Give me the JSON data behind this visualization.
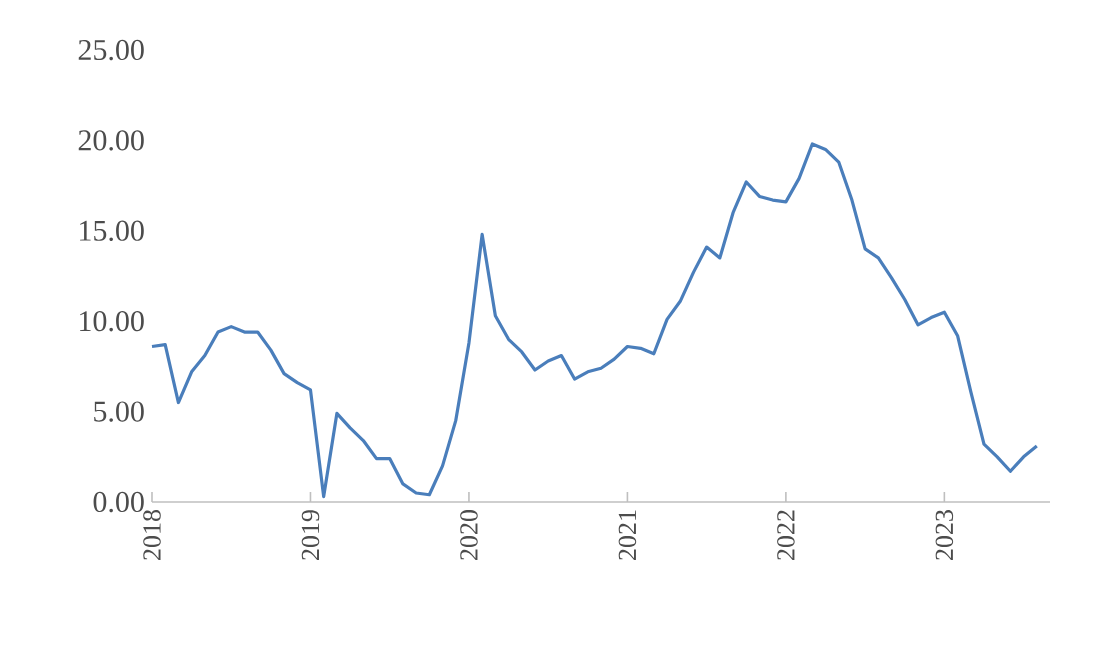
{
  "chart_data": {
    "type": "line",
    "x": [
      "2018-01",
      "2018-02",
      "2018-03",
      "2018-04",
      "2018-05",
      "2018-06",
      "2018-07",
      "2018-08",
      "2018-09",
      "2018-10",
      "2018-11",
      "2018-12",
      "2019-01",
      "2019-02",
      "2019-03",
      "2019-04",
      "2019-05",
      "2019-06",
      "2019-07",
      "2019-08",
      "2019-09",
      "2019-10",
      "2019-11",
      "2019-12",
      "2020-01",
      "2020-02",
      "2020-03",
      "2020-04",
      "2020-05",
      "2020-06",
      "2020-07",
      "2020-08",
      "2020-09",
      "2020-10",
      "2020-11",
      "2020-12",
      "2021-01",
      "2021-02",
      "2021-03",
      "2021-04",
      "2021-05",
      "2021-06",
      "2021-07",
      "2021-08",
      "2021-09",
      "2021-10",
      "2021-11",
      "2021-12",
      "2022-01",
      "2022-02",
      "2022-03",
      "2022-04",
      "2022-05",
      "2022-06",
      "2022-07",
      "2022-08",
      "2022-09",
      "2022-10",
      "2022-11",
      "2022-12",
      "2023-01",
      "2023-02",
      "2023-03",
      "2023-04",
      "2023-05",
      "2023-06",
      "2023-07",
      "2023-08"
    ],
    "series": [
      {
        "color": "#4a7ebb",
        "values": [
          8.6,
          8.7,
          5.5,
          7.2,
          8.1,
          9.4,
          9.7,
          9.4,
          9.4,
          8.4,
          7.1,
          6.6,
          6.2,
          0.3,
          4.9,
          4.1,
          3.4,
          2.4,
          2.4,
          1.0,
          0.5,
          0.4,
          2.0,
          4.5,
          8.8,
          14.8,
          10.3,
          9.0,
          8.3,
          7.3,
          7.8,
          8.1,
          6.8,
          7.2,
          7.4,
          7.9,
          8.6,
          8.5,
          8.2,
          10.1,
          11.1,
          12.7,
          14.1,
          13.5,
          16.0,
          17.7,
          16.9,
          16.7,
          16.6,
          17.9,
          19.8,
          19.5,
          18.8,
          16.7,
          14.0,
          13.5,
          12.4,
          11.2,
          9.8,
          10.2,
          10.5,
          9.2,
          6.1,
          3.2,
          2.5,
          1.7,
          2.5,
          3.1
        ]
      }
    ],
    "xlim": [
      "2018-01",
      "2023-09"
    ],
    "xticks": [
      "2018",
      "2019",
      "2020",
      "2021",
      "2022",
      "2023"
    ],
    "ylim": [
      0,
      25
    ],
    "yticks": [
      {
        "value": 0,
        "label": "0.00"
      },
      {
        "value": 5,
        "label": "5.00"
      },
      {
        "value": 10,
        "label": "10.00"
      },
      {
        "value": 15,
        "label": "15.00"
      },
      {
        "value": 20,
        "label": "20.00"
      },
      {
        "value": 25,
        "label": "25.00"
      }
    ],
    "grid": false,
    "marker": "none",
    "line_style": "solid"
  }
}
